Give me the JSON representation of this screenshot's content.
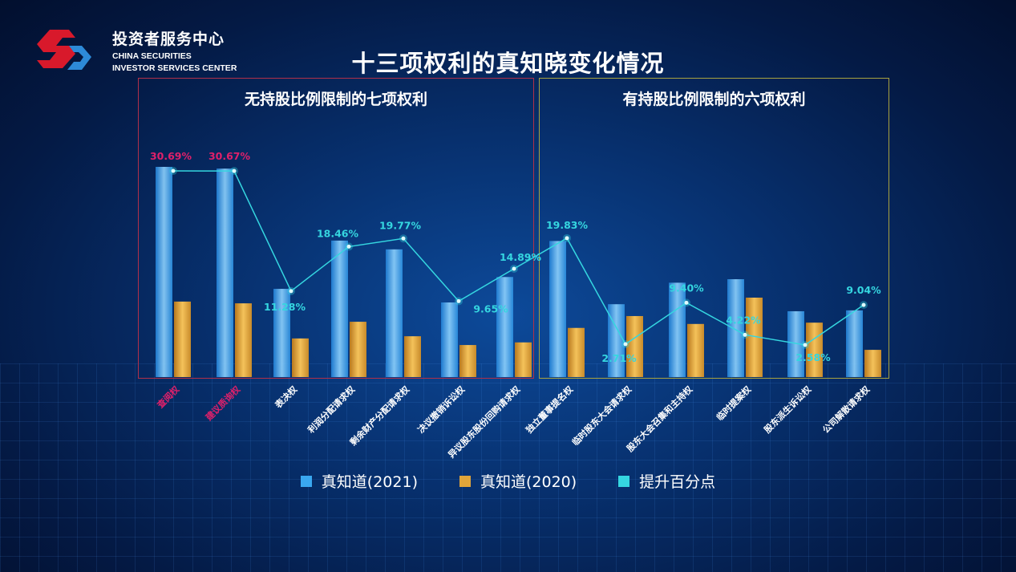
{
  "header": {
    "org_cn": "投资者服务中心",
    "org_en_line1": "CHINA SECURITIES",
    "org_en_line2": "INVESTOR SERVICES CENTER",
    "title": "十三项权利的真知晓变化情况"
  },
  "groups": [
    {
      "title": "无持股比例限制的七项权利",
      "border_color": "#b0304a"
    },
    {
      "title": "有持股比例限制的六项权利",
      "border_color": "#a8a240"
    }
  ],
  "chart_data": {
    "type": "bar",
    "title": "十三项权利的真知晓变化情况",
    "categories": [
      "查阅权",
      "建议质询权",
      "表决权",
      "利润分配请求权",
      "剩余财产分配请求权",
      "决议撤销诉讼权",
      "异议股东股份回购请求权",
      "独立董事提名权",
      "临时股东大会请求权",
      "股东大会召集和主持权",
      "临时提案权",
      "股东派生诉讼权",
      "公司解散请求权"
    ],
    "highlighted_categories": [
      "查阅权",
      "建议质询权"
    ],
    "series": [
      {
        "name": "真知道(2021)",
        "kind": "bar",
        "color": "#3aa8f0",
        "values": [
          47.9,
          47.5,
          20.1,
          31.1,
          29.1,
          17.0,
          22.8,
          31.0,
          16.6,
          21.5,
          22.3,
          15.0,
          15.2
        ]
      },
      {
        "name": "真知道(2020)",
        "kind": "bar",
        "color": "#e0a53a",
        "values": [
          17.2,
          16.8,
          8.8,
          12.6,
          9.3,
          7.3,
          7.9,
          11.2,
          13.9,
          12.1,
          18.1,
          12.4,
          6.2
        ]
      },
      {
        "name": "提升百分点",
        "kind": "line",
        "color": "#35d6e0",
        "values": [
          30.69,
          30.67,
          11.28,
          18.46,
          19.77,
          9.65,
          14.89,
          19.83,
          2.71,
          9.4,
          4.22,
          2.58,
          9.04
        ],
        "labels": [
          "30.69%",
          "30.67%",
          "11.28%",
          "18.46%",
          "19.77%",
          "9.65%",
          "14.89%",
          "19.83%",
          "2.71%",
          "9.40%",
          "4.22%",
          "2.58%",
          "9.04%"
        ]
      }
    ],
    "xlabel": "",
    "ylabel": "",
    "grid": false,
    "legend": "bottom",
    "colors": {
      "highlight_label": "#e0206a",
      "label": "#ffffff"
    }
  }
}
